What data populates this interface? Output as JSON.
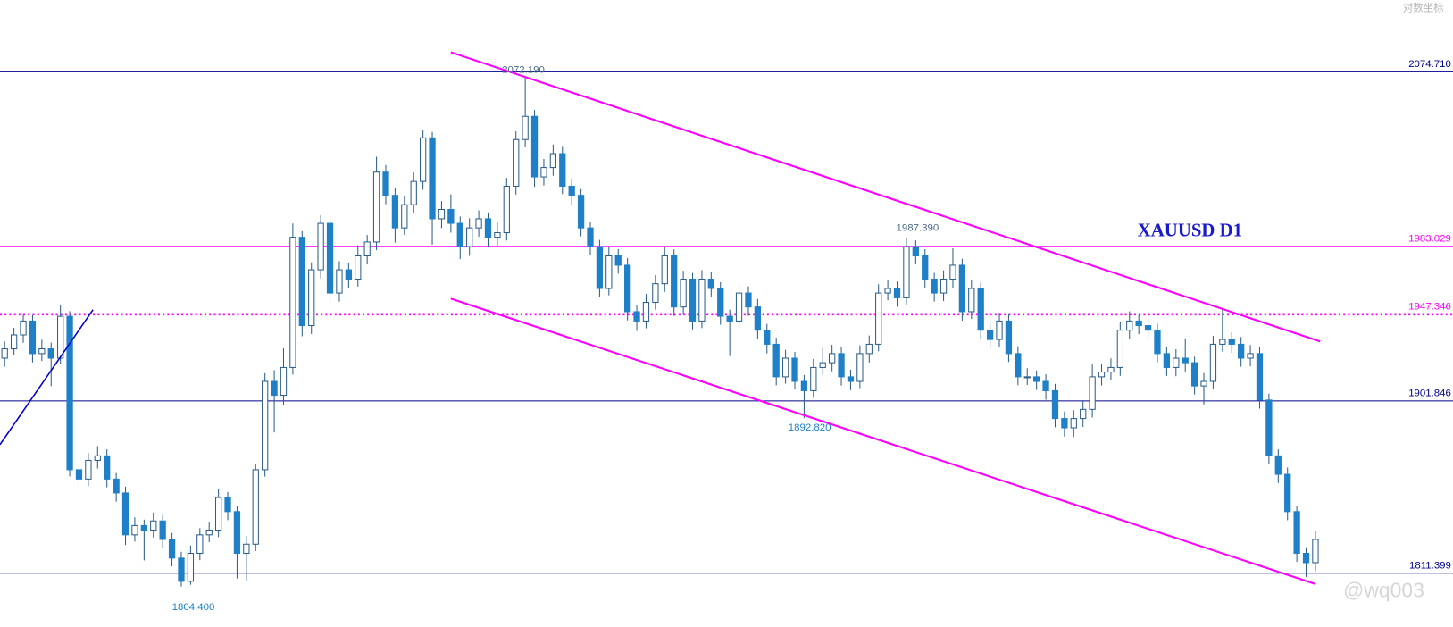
{
  "chart_data": {
    "type": "candlestick",
    "title": "XAUUSD D1",
    "scale_label": "对数坐标",
    "watermark": "@wq003",
    "ylim": [
      1783.2,
      2112.3
    ],
    "up_color": "#ffffff",
    "down_color": "#1f80c8",
    "outline_color": "#2d5f8a",
    "levels": [
      {
        "value": 2074.71,
        "label": "2074.710",
        "color": "#00008b",
        "style": "solid"
      },
      {
        "value": 1983.029,
        "label": "1983.029",
        "color": "#ff00ff",
        "style": "solid"
      },
      {
        "value": 1947.346,
        "label": "1947.346",
        "color": "#ff00ff",
        "style": "dotted"
      },
      {
        "value": 1901.846,
        "label": "1901.846",
        "color": "#00008b",
        "style": "solid"
      },
      {
        "value": 1811.399,
        "label": "1811.399",
        "color": "#00008b",
        "style": "solid"
      }
    ],
    "annotations": [
      "2072.190",
      "1987.390",
      "1892.820",
      "1804.400"
    ],
    "candles": [
      [
        1924.3,
        1933.1,
        1919.8,
        1929.2
      ],
      [
        1929.2,
        1940.2,
        1926.0,
        1936.5
      ],
      [
        1936.5,
        1947.0,
        1932.4,
        1943.8
      ],
      [
        1943.8,
        1946.9,
        1922.1,
        1926.7
      ],
      [
        1926.7,
        1934.0,
        1922.8,
        1929.2
      ],
      [
        1929.2,
        1932.5,
        1909.6,
        1924.3
      ],
      [
        1924.3,
        1952.5,
        1921.0,
        1946.3
      ],
      [
        1946.3,
        1949.0,
        1862.2,
        1865.7
      ],
      [
        1865.7,
        1868.9,
        1856.0,
        1860.8
      ],
      [
        1860.8,
        1874.5,
        1857.2,
        1870.6
      ],
      [
        1870.6,
        1878.1,
        1866.3,
        1873.0
      ],
      [
        1873.0,
        1876.4,
        1856.5,
        1860.8
      ],
      [
        1860.8,
        1864.0,
        1848.9,
        1853.5
      ],
      [
        1853.5,
        1856.8,
        1826.2,
        1831.5
      ],
      [
        1831.5,
        1840.7,
        1827.9,
        1836.4
      ],
      [
        1836.4,
        1839.5,
        1818.1,
        1834.0
      ],
      [
        1834.0,
        1843.2,
        1830.1,
        1838.8
      ],
      [
        1838.8,
        1842.0,
        1824.6,
        1829.1
      ],
      [
        1829.1,
        1832.5,
        1815.0,
        1819.3
      ],
      [
        1819.3,
        1822.6,
        1804.4,
        1807.1
      ],
      [
        1807.1,
        1825.9,
        1805.3,
        1821.8
      ],
      [
        1821.8,
        1835.0,
        1818.2,
        1831.5
      ],
      [
        1831.5,
        1838.4,
        1827.7,
        1834.0
      ],
      [
        1834.0,
        1855.6,
        1830.3,
        1851.1
      ],
      [
        1851.1,
        1854.0,
        1839.2,
        1843.7
      ],
      [
        1843.7,
        1846.6,
        1808.6,
        1821.8
      ],
      [
        1821.8,
        1830.9,
        1807.5,
        1826.6
      ],
      [
        1826.6,
        1868.8,
        1823.0,
        1865.7
      ],
      [
        1865.7,
        1916.4,
        1862.1,
        1912.1
      ],
      [
        1912.1,
        1918.0,
        1885.3,
        1904.8
      ],
      [
        1904.8,
        1929.5,
        1899.6,
        1919.4
      ],
      [
        1919.4,
        1995.0,
        1915.7,
        1987.8
      ],
      [
        1987.8,
        1990.9,
        1935.8,
        1941.4
      ],
      [
        1941.4,
        1974.6,
        1937.0,
        1970.7
      ],
      [
        1970.7,
        1999.3,
        1966.2,
        1995.1
      ],
      [
        1995.1,
        1998.4,
        1953.6,
        1958.5
      ],
      [
        1958.5,
        1975.2,
        1954.0,
        1970.7
      ],
      [
        1970.7,
        1974.3,
        1961.1,
        1965.8
      ],
      [
        1965.8,
        1983.6,
        1961.9,
        1978.0
      ],
      [
        1978.0,
        1989.0,
        1973.5,
        1985.3
      ],
      [
        1985.3,
        2030.1,
        1981.0,
        2022.0
      ],
      [
        2022.0,
        2025.7,
        2005.1,
        2009.8
      ],
      [
        2009.8,
        2013.4,
        1985.0,
        1992.7
      ],
      [
        1992.7,
        2009.6,
        1989.0,
        2004.9
      ],
      [
        2004.9,
        2021.8,
        2000.3,
        2017.1
      ],
      [
        2017.1,
        2044.4,
        2012.8,
        2040.0
      ],
      [
        2040.0,
        2043.1,
        1983.9,
        1997.5
      ],
      [
        1997.5,
        2006.8,
        1992.6,
        2002.4
      ],
      [
        2002.4,
        2010.3,
        1990.2,
        1995.1
      ],
      [
        1995.1,
        1998.7,
        1976.3,
        1982.9
      ],
      [
        1982.9,
        1997.8,
        1978.0,
        1992.7
      ],
      [
        1992.7,
        2001.9,
        1988.1,
        1997.5
      ],
      [
        1997.5,
        2000.8,
        1982.6,
        1987.8
      ],
      [
        1987.8,
        1995.9,
        1983.4,
        1990.2
      ],
      [
        1990.2,
        2019.0,
        1986.1,
        2014.6
      ],
      [
        2014.6,
        2043.5,
        2010.2,
        2039.1
      ],
      [
        2039.1,
        2072.2,
        2035.0,
        2051.3
      ],
      [
        2051.3,
        2054.6,
        2014.3,
        2019.5
      ],
      [
        2019.5,
        2028.9,
        2015.0,
        2024.4
      ],
      [
        2024.4,
        2036.5,
        2020.1,
        2031.7
      ],
      [
        2031.7,
        2035.3,
        2010.4,
        2014.6
      ],
      [
        2014.6,
        2018.7,
        2005.0,
        2009.8
      ],
      [
        2009.8,
        2013.1,
        1988.3,
        1992.7
      ],
      [
        1992.7,
        1996.0,
        1978.6,
        1982.9
      ],
      [
        1982.9,
        1986.4,
        1956.2,
        1960.9
      ],
      [
        1960.9,
        1982.5,
        1957.3,
        1978.0
      ],
      [
        1978.0,
        1981.6,
        1968.7,
        1973.1
      ],
      [
        1973.1,
        1976.9,
        1944.1,
        1948.7
      ],
      [
        1948.7,
        1952.3,
        1938.6,
        1943.8
      ],
      [
        1943.8,
        1958.0,
        1940.0,
        1953.6
      ],
      [
        1953.6,
        1967.9,
        1949.8,
        1963.4
      ],
      [
        1963.4,
        1982.6,
        1959.1,
        1978.0
      ],
      [
        1978.0,
        1981.4,
        1946.5,
        1951.2
      ],
      [
        1951.2,
        1970.2,
        1947.8,
        1965.8
      ],
      [
        1965.8,
        1969.0,
        1939.4,
        1943.8
      ],
      [
        1943.8,
        1970.5,
        1940.1,
        1965.8
      ],
      [
        1965.8,
        1969.7,
        1956.5,
        1960.9
      ],
      [
        1960.9,
        1964.2,
        1941.9,
        1946.3
      ],
      [
        1946.3,
        1949.8,
        1925.4,
        1943.8
      ],
      [
        1943.8,
        1963.3,
        1940.2,
        1958.5
      ],
      [
        1958.5,
        1962.0,
        1946.6,
        1951.2
      ],
      [
        1951.2,
        1955.4,
        1934.5,
        1939.0
      ],
      [
        1939.0,
        1942.3,
        1926.8,
        1931.6
      ],
      [
        1931.6,
        1935.1,
        1910.0,
        1914.5
      ],
      [
        1914.5,
        1928.7,
        1910.9,
        1924.3
      ],
      [
        1924.3,
        1927.6,
        1907.8,
        1912.1
      ],
      [
        1912.1,
        1915.5,
        1892.8,
        1907.2
      ],
      [
        1907.2,
        1923.9,
        1903.5,
        1919.4
      ],
      [
        1919.4,
        1929.8,
        1915.6,
        1921.9
      ],
      [
        1921.9,
        1931.3,
        1917.4,
        1926.7
      ],
      [
        1926.7,
        1930.0,
        1909.9,
        1914.5
      ],
      [
        1914.5,
        1918.2,
        1907.5,
        1912.1
      ],
      [
        1912.1,
        1931.0,
        1908.6,
        1926.7
      ],
      [
        1926.7,
        1936.2,
        1922.0,
        1931.6
      ],
      [
        1931.6,
        1963.1,
        1927.9,
        1958.5
      ],
      [
        1958.5,
        1965.2,
        1954.7,
        1960.9
      ],
      [
        1960.9,
        1964.5,
        1951.3,
        1956.0
      ],
      [
        1956.0,
        1987.4,
        1952.1,
        1982.9
      ],
      [
        1982.9,
        1986.2,
        1973.6,
        1978.0
      ],
      [
        1978.0,
        1981.5,
        1961.2,
        1965.8
      ],
      [
        1965.8,
        1969.1,
        1954.0,
        1958.5
      ],
      [
        1958.5,
        1970.4,
        1954.3,
        1965.8
      ],
      [
        1965.8,
        1982.0,
        1961.0,
        1973.1
      ],
      [
        1973.1,
        1976.5,
        1944.0,
        1948.7
      ],
      [
        1948.7,
        1965.6,
        1944.9,
        1960.9
      ],
      [
        1960.9,
        1964.1,
        1934.7,
        1939.0
      ],
      [
        1939.0,
        1942.5,
        1929.5,
        1934.1
      ],
      [
        1934.1,
        1948.1,
        1930.0,
        1943.8
      ],
      [
        1943.8,
        1947.4,
        1922.3,
        1926.7
      ],
      [
        1926.7,
        1930.6,
        1910.1,
        1914.5
      ],
      [
        1914.5,
        1919.0,
        1910.2,
        1914.5
      ],
      [
        1914.5,
        1917.8,
        1907.6,
        1912.1
      ],
      [
        1912.1,
        1915.9,
        1902.5,
        1907.2
      ],
      [
        1907.2,
        1910.8,
        1888.0,
        1892.6
      ],
      [
        1892.6,
        1896.3,
        1883.1,
        1887.7
      ],
      [
        1887.7,
        1897.0,
        1882.9,
        1892.6
      ],
      [
        1892.6,
        1901.8,
        1888.2,
        1897.4
      ],
      [
        1897.4,
        1921.0,
        1893.1,
        1914.5
      ],
      [
        1914.5,
        1921.4,
        1910.0,
        1917.0
      ],
      [
        1917.0,
        1924.2,
        1912.7,
        1919.4
      ],
      [
        1919.4,
        1943.6,
        1915.0,
        1939.0
      ],
      [
        1939.0,
        1948.9,
        1934.4,
        1943.8
      ],
      [
        1943.8,
        1947.2,
        1936.9,
        1941.4
      ],
      [
        1941.4,
        1945.5,
        1934.6,
        1939.0
      ],
      [
        1939.0,
        1942.3,
        1922.1,
        1926.7
      ],
      [
        1926.7,
        1930.1,
        1915.0,
        1919.4
      ],
      [
        1919.4,
        1929.0,
        1914.8,
        1924.3
      ],
      [
        1924.3,
        1934.7,
        1917.3,
        1921.9
      ],
      [
        1921.9,
        1925.1,
        1905.2,
        1909.7
      ],
      [
        1909.7,
        1916.5,
        1900.0,
        1912.1
      ],
      [
        1912.1,
        1936.0,
        1908.0,
        1931.6
      ],
      [
        1931.6,
        1950.6,
        1927.7,
        1934.1
      ],
      [
        1934.1,
        1937.9,
        1927.1,
        1931.6
      ],
      [
        1931.6,
        1935.4,
        1919.8,
        1924.3
      ],
      [
        1924.3,
        1931.2,
        1920.0,
        1926.7
      ],
      [
        1926.7,
        1930.0,
        1897.8,
        1902.3
      ],
      [
        1902.3,
        1905.7,
        1868.5,
        1873.0
      ],
      [
        1873.0,
        1876.4,
        1858.7,
        1863.3
      ],
      [
        1863.3,
        1866.9,
        1839.2,
        1843.7
      ],
      [
        1843.7,
        1846.9,
        1817.3,
        1821.8
      ],
      [
        1821.8,
        1825.0,
        1809.4,
        1816.9
      ],
      [
        1816.9,
        1833.5,
        1812.4,
        1829.1
      ]
    ]
  }
}
